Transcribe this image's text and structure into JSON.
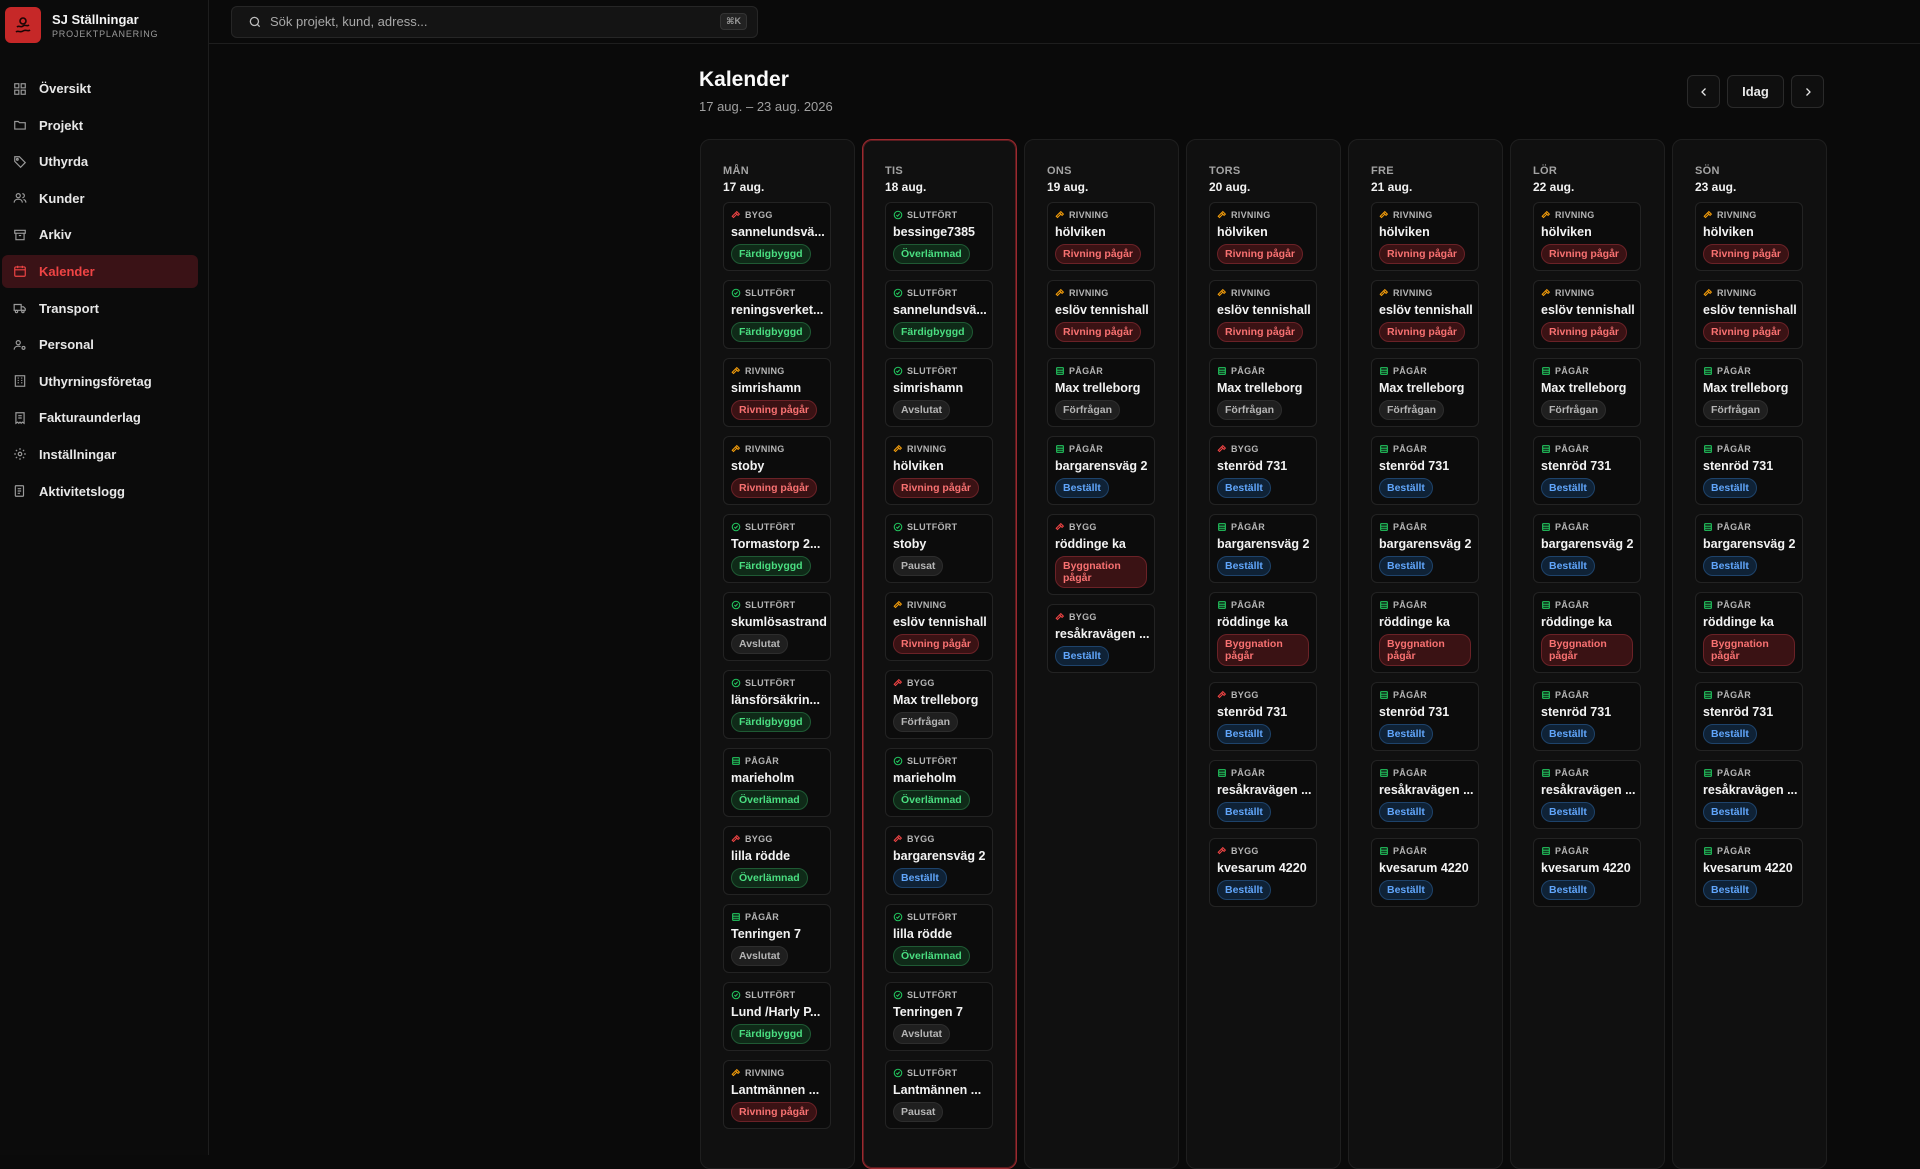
{
  "brand": {
    "name": "SJ Ställningar",
    "subtitle": "PROJEKTPLANERING"
  },
  "nav": [
    {
      "label": "Översikt",
      "icon": "grid-icon",
      "active": false
    },
    {
      "label": "Projekt",
      "icon": "folder-icon",
      "active": false
    },
    {
      "label": "Uthyrda",
      "icon": "tag-icon",
      "active": false
    },
    {
      "label": "Kunder",
      "icon": "users-icon",
      "active": false
    },
    {
      "label": "Arkiv",
      "icon": "archive-icon",
      "active": false
    },
    {
      "label": "Kalender",
      "icon": "calendar-icon",
      "active": true
    },
    {
      "label": "Transport",
      "icon": "truck-icon",
      "active": false
    },
    {
      "label": "Personal",
      "icon": "user-cog-icon",
      "active": false
    },
    {
      "label": "Uthyrningsföretag",
      "icon": "building-icon",
      "active": false
    },
    {
      "label": "Fakturaunderlag",
      "icon": "receipt-icon",
      "active": false
    },
    {
      "label": "Inställningar",
      "icon": "gear-icon",
      "active": false
    },
    {
      "label": "Aktivitetslogg",
      "icon": "log-icon",
      "active": false
    }
  ],
  "search": {
    "placeholder": "Sök projekt, kund, adress...",
    "shortcut": "⌘K"
  },
  "page": {
    "title": "Kalender",
    "range": "17 aug. – 23 aug. 2026"
  },
  "controls": {
    "prev": "‹",
    "today": "Idag",
    "next": "›"
  },
  "colors": {
    "accent": "#ef4444",
    "green": "#4ade80",
    "red": "#f87171",
    "blue": "#60a5fa",
    "gray": "#b5b5b5"
  },
  "days": [
    {
      "dow": "MÅN",
      "date": "17 aug.",
      "today": false,
      "cards": [
        {
          "type": "BYGG",
          "name": "sannelundsvä...",
          "status": "Färdigbyggd",
          "tone": "green"
        },
        {
          "type": "SLUTFÖRT",
          "name": "reningsverket...",
          "status": "Färdigbyggd",
          "tone": "green"
        },
        {
          "type": "RIVNING",
          "name": "simrishamn",
          "status": "Rivning pågår",
          "tone": "red"
        },
        {
          "type": "RIVNING",
          "name": "stoby",
          "status": "Rivning pågår",
          "tone": "red"
        },
        {
          "type": "SLUTFÖRT",
          "name": "Tormastorp 2...",
          "status": "Färdigbyggd",
          "tone": "green"
        },
        {
          "type": "SLUTFÖRT",
          "name": "skumlösastrand",
          "status": "Avslutat",
          "tone": "gray"
        },
        {
          "type": "SLUTFÖRT",
          "name": "länsförsäkrin...",
          "status": "Färdigbyggd",
          "tone": "green"
        },
        {
          "type": "PÅGÅR",
          "name": "marieholm",
          "status": "Överlämnad",
          "tone": "green"
        },
        {
          "type": "BYGG",
          "name": "lilla rödde",
          "status": "Överlämnad",
          "tone": "green"
        },
        {
          "type": "PÅGÅR",
          "name": "Tenringen 7",
          "status": "Avslutat",
          "tone": "gray"
        },
        {
          "type": "SLUTFÖRT",
          "name": "Lund /Harly P...",
          "status": "Färdigbyggd",
          "tone": "green"
        },
        {
          "type": "RIVNING",
          "name": "Lantmännen ...",
          "status": "Rivning pågår",
          "tone": "red"
        }
      ]
    },
    {
      "dow": "TIS",
      "date": "18 aug.",
      "today": true,
      "cards": [
        {
          "type": "SLUTFÖRT",
          "name": "bessinge7385",
          "status": "Överlämnad",
          "tone": "green"
        },
        {
          "type": "SLUTFÖRT",
          "name": "sannelundsvä...",
          "status": "Färdigbyggd",
          "tone": "green"
        },
        {
          "type": "SLUTFÖRT",
          "name": "simrishamn",
          "status": "Avslutat",
          "tone": "gray"
        },
        {
          "type": "RIVNING",
          "name": "hölviken",
          "status": "Rivning pågår",
          "tone": "red"
        },
        {
          "type": "SLUTFÖRT",
          "name": "stoby",
          "status": "Pausat",
          "tone": "gray"
        },
        {
          "type": "RIVNING",
          "name": "eslöv tennishall",
          "status": "Rivning pågår",
          "tone": "red"
        },
        {
          "type": "BYGG",
          "name": "Max trelleborg",
          "status": "Förfrågan",
          "tone": "gray"
        },
        {
          "type": "SLUTFÖRT",
          "name": "marieholm",
          "status": "Överlämnad",
          "tone": "green"
        },
        {
          "type": "BYGG",
          "name": "bargarensväg 2",
          "status": "Beställt",
          "tone": "blue"
        },
        {
          "type": "SLUTFÖRT",
          "name": "lilla rödde",
          "status": "Överlämnad",
          "tone": "green"
        },
        {
          "type": "SLUTFÖRT",
          "name": "Tenringen 7",
          "status": "Avslutat",
          "tone": "gray"
        },
        {
          "type": "SLUTFÖRT",
          "name": "Lantmännen ...",
          "status": "Pausat",
          "tone": "gray"
        }
      ]
    },
    {
      "dow": "ONS",
      "date": "19 aug.",
      "today": false,
      "cards": [
        {
          "type": "RIVNING",
          "name": "hölviken",
          "status": "Rivning pågår",
          "tone": "red"
        },
        {
          "type": "RIVNING",
          "name": "eslöv tennishall",
          "status": "Rivning pågår",
          "tone": "red"
        },
        {
          "type": "PÅGÅR",
          "name": "Max trelleborg",
          "status": "Förfrågan",
          "tone": "gray"
        },
        {
          "type": "PÅGÅR",
          "name": "bargarensväg 2",
          "status": "Beställt",
          "tone": "blue"
        },
        {
          "type": "BYGG",
          "name": "röddinge ka",
          "status": "Byggnation pågår",
          "tone": "red"
        },
        {
          "type": "BYGG",
          "name": "resåkravägen ...",
          "status": "Beställt",
          "tone": "blue"
        }
      ]
    },
    {
      "dow": "TORS",
      "date": "20 aug.",
      "today": false,
      "cards": [
        {
          "type": "RIVNING",
          "name": "hölviken",
          "status": "Rivning pågår",
          "tone": "red"
        },
        {
          "type": "RIVNING",
          "name": "eslöv tennishall",
          "status": "Rivning pågår",
          "tone": "red"
        },
        {
          "type": "PÅGÅR",
          "name": "Max trelleborg",
          "status": "Förfrågan",
          "tone": "gray"
        },
        {
          "type": "BYGG",
          "name": "stenröd 731",
          "status": "Beställt",
          "tone": "blue"
        },
        {
          "type": "PÅGÅR",
          "name": "bargarensväg 2",
          "status": "Beställt",
          "tone": "blue"
        },
        {
          "type": "PÅGÅR",
          "name": "röddinge ka",
          "status": "Byggnation pågår",
          "tone": "red"
        },
        {
          "type": "BYGG",
          "name": "stenröd 731",
          "status": "Beställt",
          "tone": "blue"
        },
        {
          "type": "PÅGÅR",
          "name": "resåkravägen ...",
          "status": "Beställt",
          "tone": "blue"
        },
        {
          "type": "BYGG",
          "name": "kvesarum 4220",
          "status": "Beställt",
          "tone": "blue"
        }
      ]
    },
    {
      "dow": "FRE",
      "date": "21 aug.",
      "today": false,
      "cards": [
        {
          "type": "RIVNING",
          "name": "hölviken",
          "status": "Rivning pågår",
          "tone": "red"
        },
        {
          "type": "RIVNING",
          "name": "eslöv tennishall",
          "status": "Rivning pågår",
          "tone": "red"
        },
        {
          "type": "PÅGÅR",
          "name": "Max trelleborg",
          "status": "Förfrågan",
          "tone": "gray"
        },
        {
          "type": "PÅGÅR",
          "name": "stenröd 731",
          "status": "Beställt",
          "tone": "blue"
        },
        {
          "type": "PÅGÅR",
          "name": "bargarensväg 2",
          "status": "Beställt",
          "tone": "blue"
        },
        {
          "type": "PÅGÅR",
          "name": "röddinge ka",
          "status": "Byggnation pågår",
          "tone": "red"
        },
        {
          "type": "PÅGÅR",
          "name": "stenröd 731",
          "status": "Beställt",
          "tone": "blue"
        },
        {
          "type": "PÅGÅR",
          "name": "resåkravägen ...",
          "status": "Beställt",
          "tone": "blue"
        },
        {
          "type": "PÅGÅR",
          "name": "kvesarum 4220",
          "status": "Beställt",
          "tone": "blue"
        }
      ]
    },
    {
      "dow": "LÖR",
      "date": "22 aug.",
      "today": false,
      "cards": [
        {
          "type": "RIVNING",
          "name": "hölviken",
          "status": "Rivning pågår",
          "tone": "red"
        },
        {
          "type": "RIVNING",
          "name": "eslöv tennishall",
          "status": "Rivning pågår",
          "tone": "red"
        },
        {
          "type": "PÅGÅR",
          "name": "Max trelleborg",
          "status": "Förfrågan",
          "tone": "gray"
        },
        {
          "type": "PÅGÅR",
          "name": "stenröd 731",
          "status": "Beställt",
          "tone": "blue"
        },
        {
          "type": "PÅGÅR",
          "name": "bargarensväg 2",
          "status": "Beställt",
          "tone": "blue"
        },
        {
          "type": "PÅGÅR",
          "name": "röddinge ka",
          "status": "Byggnation pågår",
          "tone": "red"
        },
        {
          "type": "PÅGÅR",
          "name": "stenröd 731",
          "status": "Beställt",
          "tone": "blue"
        },
        {
          "type": "PÅGÅR",
          "name": "resåkravägen ...",
          "status": "Beställt",
          "tone": "blue"
        },
        {
          "type": "PÅGÅR",
          "name": "kvesarum 4220",
          "status": "Beställt",
          "tone": "blue"
        }
      ]
    },
    {
      "dow": "SÖN",
      "date": "23 aug.",
      "today": false,
      "cards": [
        {
          "type": "RIVNING",
          "name": "hölviken",
          "status": "Rivning pågår",
          "tone": "red"
        },
        {
          "type": "RIVNING",
          "name": "eslöv tennishall",
          "status": "Rivning pågår",
          "tone": "red"
        },
        {
          "type": "PÅGÅR",
          "name": "Max trelleborg",
          "status": "Förfrågan",
          "tone": "gray"
        },
        {
          "type": "PÅGÅR",
          "name": "stenröd 731",
          "status": "Beställt",
          "tone": "blue"
        },
        {
          "type": "PÅGÅR",
          "name": "bargarensväg 2",
          "status": "Beställt",
          "tone": "blue"
        },
        {
          "type": "PÅGÅR",
          "name": "röddinge ka",
          "status": "Byggnation pågår",
          "tone": "red"
        },
        {
          "type": "PÅGÅR",
          "name": "stenröd 731",
          "status": "Beställt",
          "tone": "blue"
        },
        {
          "type": "PÅGÅR",
          "name": "resåkravägen ...",
          "status": "Beställt",
          "tone": "blue"
        },
        {
          "type": "PÅGÅR",
          "name": "kvesarum 4220",
          "status": "Beställt",
          "tone": "blue"
        }
      ]
    }
  ]
}
